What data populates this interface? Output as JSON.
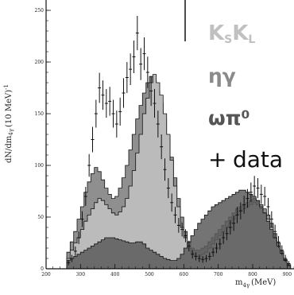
{
  "chart_data": {
    "type": "histogram",
    "xlabel": "m",
    "xlabel_sub": "4γ",
    "xlabel_unit": "(MeV)",
    "ylabel": "dN/dm",
    "ylabel_sub": "4γ",
    "ylabel_unit": "(10 MeV)",
    "ylabel_exp": "-1",
    "xlim": [
      200,
      920
    ],
    "ylim": [
      0,
      260
    ],
    "x_ticks": [
      200,
      300,
      400,
      500,
      600,
      700,
      800,
      900
    ],
    "y_ticks": [
      0,
      50,
      100,
      150,
      200,
      250
    ],
    "bin_edges": [
      260,
      270,
      280,
      290,
      300,
      310,
      320,
      330,
      340,
      350,
      360,
      370,
      380,
      390,
      400,
      410,
      420,
      430,
      440,
      450,
      460,
      470,
      480,
      490,
      500,
      510,
      520,
      530,
      540,
      550,
      560,
      570,
      580,
      590,
      600,
      610,
      620,
      630,
      640,
      650,
      660,
      670,
      680,
      690,
      700,
      710,
      720,
      730,
      740,
      750,
      760,
      770,
      780,
      790,
      800,
      810,
      820,
      830,
      840,
      850,
      860,
      870,
      880,
      890,
      900,
      910
    ],
    "series": [
      {
        "name": "K_S K_L",
        "color": "#bbbbbb",
        "values": [
          10,
          18,
          25,
          30,
          38,
          46,
          52,
          58,
          64,
          68,
          66,
          62,
          58,
          54,
          52,
          55,
          60,
          68,
          80,
          95,
          112,
          130,
          150,
          165,
          180,
          188,
          180,
          168,
          150,
          130,
          105,
          80,
          60,
          40,
          30,
          20,
          15,
          12,
          12,
          14,
          16,
          20,
          24,
          28,
          32,
          36,
          40,
          44,
          48,
          52,
          56,
          58,
          60,
          62,
          64,
          62,
          58,
          54,
          48,
          40,
          30,
          22,
          15,
          8,
          3
        ]
      },
      {
        "name": "ηγ",
        "color": "#8f8f8f",
        "values": [
          16,
          26,
          36,
          48,
          60,
          74,
          84,
          92,
          98,
          94,
          86,
          78,
          72,
          68,
          70,
          78,
          88,
          100,
          115,
          130,
          145,
          158,
          170,
          180,
          186,
          182,
          172,
          160,
          145,
          128,
          108,
          88,
          68,
          50,
          36,
          26,
          20,
          18,
          18,
          20,
          22,
          26,
          30,
          34,
          38,
          42,
          46,
          50,
          54,
          58,
          60,
          62,
          64,
          66,
          68,
          66,
          62,
          58,
          52,
          44,
          34,
          25,
          17,
          9,
          4
        ]
      },
      {
        "name": "ωπ⁰",
        "color": "#5c5c5c",
        "values": [
          8,
          10,
          12,
          14,
          16,
          18,
          20,
          22,
          24,
          26,
          28,
          30,
          30,
          30,
          29,
          28,
          27,
          26,
          25,
          25,
          26,
          26,
          24,
          20,
          18,
          16,
          14,
          12,
          10,
          9,
          8,
          8,
          10,
          14,
          20,
          26,
          32,
          38,
          44,
          48,
          52,
          56,
          60,
          62,
          64,
          66,
          68,
          70,
          72,
          74,
          76,
          76,
          74,
          72,
          70,
          66,
          60,
          54,
          46,
          38,
          30,
          22,
          15,
          8,
          3
        ]
      }
    ],
    "data_points": {
      "name": "data",
      "x": [
        265,
        275,
        285,
        295,
        305,
        315,
        325,
        335,
        345,
        355,
        365,
        375,
        385,
        395,
        405,
        415,
        425,
        435,
        445,
        455,
        465,
        475,
        485,
        495,
        505,
        515,
        525,
        535,
        545,
        555,
        565,
        575,
        585,
        595,
        605,
        615,
        625,
        635,
        645,
        655,
        665,
        675,
        685,
        695,
        705,
        715,
        725,
        735,
        745,
        755,
        765,
        775,
        785,
        795,
        805,
        815,
        825,
        835,
        845,
        855,
        865,
        875,
        885,
        895,
        905
      ],
      "y": [
        6,
        10,
        17,
        30,
        48,
        70,
        100,
        125,
        150,
        175,
        168,
        160,
        162,
        150,
        140,
        152,
        170,
        185,
        193,
        205,
        228,
        198,
        208,
        190,
        172,
        160,
        140,
        118,
        96,
        78,
        64,
        52,
        42,
        38,
        32,
        22,
        14,
        12,
        10,
        9,
        10,
        12,
        16,
        20,
        24,
        30,
        34,
        40,
        44,
        52,
        56,
        62,
        68,
        74,
        80,
        78,
        72,
        70,
        60,
        48,
        36,
        26,
        18,
        10,
        5
      ]
    },
    "legend": [
      "K_S K_L",
      "ηγ",
      "ωπ⁰",
      "data"
    ],
    "legend_placement": "top-right"
  }
}
